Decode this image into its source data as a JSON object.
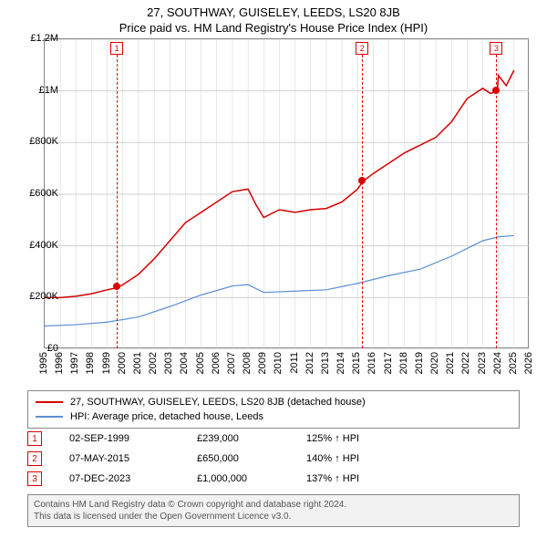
{
  "title": {
    "main": "27, SOUTHWAY, GUISELEY, LEEDS, LS20 8JB",
    "sub": "Price paid vs. HM Land Registry's House Price Index (HPI)",
    "fontsize": 13,
    "color": "#000000"
  },
  "chart": {
    "type": "line",
    "background_color": "#ffffff",
    "border_color": "#888888",
    "grid_color": "#d0d0d0",
    "x_axis": {
      "min": 1995,
      "max": 2026,
      "ticks": [
        1995,
        1996,
        1997,
        1998,
        1999,
        2000,
        2001,
        2002,
        2003,
        2004,
        2005,
        2006,
        2007,
        2008,
        2009,
        2010,
        2011,
        2012,
        2013,
        2014,
        2015,
        2016,
        2017,
        2018,
        2019,
        2020,
        2021,
        2022,
        2023,
        2024,
        2025,
        2026
      ],
      "label_fontsize": 11,
      "label_rotation": 90
    },
    "y_axis": {
      "min": 0,
      "max": 1200000,
      "ticks": [
        0,
        200000,
        400000,
        600000,
        800000,
        1000000,
        1200000
      ],
      "tick_labels": [
        "£0",
        "£200K",
        "£400K",
        "£600K",
        "£800K",
        "£1M",
        "£1.2M"
      ],
      "label_fontsize": 11
    },
    "series": [
      {
        "name": "27, SOUTHWAY, GUISELEY, LEEDS, LS20 8JB (detached house)",
        "color": "#d40000",
        "line_width": 1.5,
        "data": [
          [
            1995,
            200000
          ],
          [
            1996,
            200000
          ],
          [
            1997,
            205000
          ],
          [
            1998,
            215000
          ],
          [
            1999,
            230000
          ],
          [
            1999.67,
            239000
          ],
          [
            2000,
            250000
          ],
          [
            2001,
            290000
          ],
          [
            2002,
            350000
          ],
          [
            2003,
            420000
          ],
          [
            2004,
            490000
          ],
          [
            2005,
            530000
          ],
          [
            2006,
            570000
          ],
          [
            2007,
            610000
          ],
          [
            2008,
            620000
          ],
          [
            2008.5,
            560000
          ],
          [
            2009,
            510000
          ],
          [
            2010,
            540000
          ],
          [
            2011,
            530000
          ],
          [
            2012,
            540000
          ],
          [
            2013,
            545000
          ],
          [
            2014,
            570000
          ],
          [
            2015,
            620000
          ],
          [
            2015.35,
            650000
          ],
          [
            2016,
            680000
          ],
          [
            2017,
            720000
          ],
          [
            2018,
            760000
          ],
          [
            2019,
            790000
          ],
          [
            2020,
            820000
          ],
          [
            2021,
            880000
          ],
          [
            2022,
            970000
          ],
          [
            2023,
            1010000
          ],
          [
            2023.5,
            990000
          ],
          [
            2023.93,
            1000000
          ],
          [
            2024,
            1060000
          ],
          [
            2024.5,
            1020000
          ],
          [
            2025,
            1080000
          ]
        ]
      },
      {
        "name": "HPI: Average price, detached house, Leeds",
        "color": "#5b8fd6",
        "line_width": 1.2,
        "data": [
          [
            1995,
            90000
          ],
          [
            1997,
            95000
          ],
          [
            1999,
            105000
          ],
          [
            2001,
            125000
          ],
          [
            2003,
            165000
          ],
          [
            2005,
            210000
          ],
          [
            2007,
            245000
          ],
          [
            2008,
            250000
          ],
          [
            2009,
            220000
          ],
          [
            2011,
            225000
          ],
          [
            2013,
            230000
          ],
          [
            2015,
            255000
          ],
          [
            2017,
            285000
          ],
          [
            2019,
            310000
          ],
          [
            2021,
            360000
          ],
          [
            2023,
            420000
          ],
          [
            2024,
            435000
          ],
          [
            2025,
            440000
          ]
        ]
      }
    ],
    "markers": [
      {
        "num": "1",
        "year": 1999.67,
        "price": 239000
      },
      {
        "num": "2",
        "year": 2015.35,
        "price": 650000
      },
      {
        "num": "3",
        "year": 2023.93,
        "price": 1000000
      }
    ]
  },
  "legend": {
    "border_color": "#888888",
    "fontsize": 11,
    "items": [
      {
        "color": "#d40000",
        "label": "27, SOUTHWAY, GUISELEY, LEEDS, LS20 8JB (detached house)"
      },
      {
        "color": "#5b8fd6",
        "label": "HPI: Average price, detached house, Leeds"
      }
    ]
  },
  "sales": {
    "fontsize": 11,
    "box_border_color": "#d40000",
    "box_text_color": "#d40000",
    "rows": [
      {
        "num": "1",
        "date": "02-SEP-1999",
        "price": "£239,000",
        "pct": "125% ↑ HPI"
      },
      {
        "num": "2",
        "date": "07-MAY-2015",
        "price": "£650,000",
        "pct": "140% ↑ HPI"
      },
      {
        "num": "3",
        "date": "07-DEC-2023",
        "price": "£1,000,000",
        "pct": "137% ↑ HPI"
      }
    ]
  },
  "attribution": {
    "line1": "Contains HM Land Registry data © Crown copyright and database right 2024.",
    "line2": "This data is licensed under the Open Government Licence v3.0.",
    "background_color": "#f2f2f2",
    "border_color": "#888888",
    "text_color": "#555555",
    "fontsize": 10
  }
}
